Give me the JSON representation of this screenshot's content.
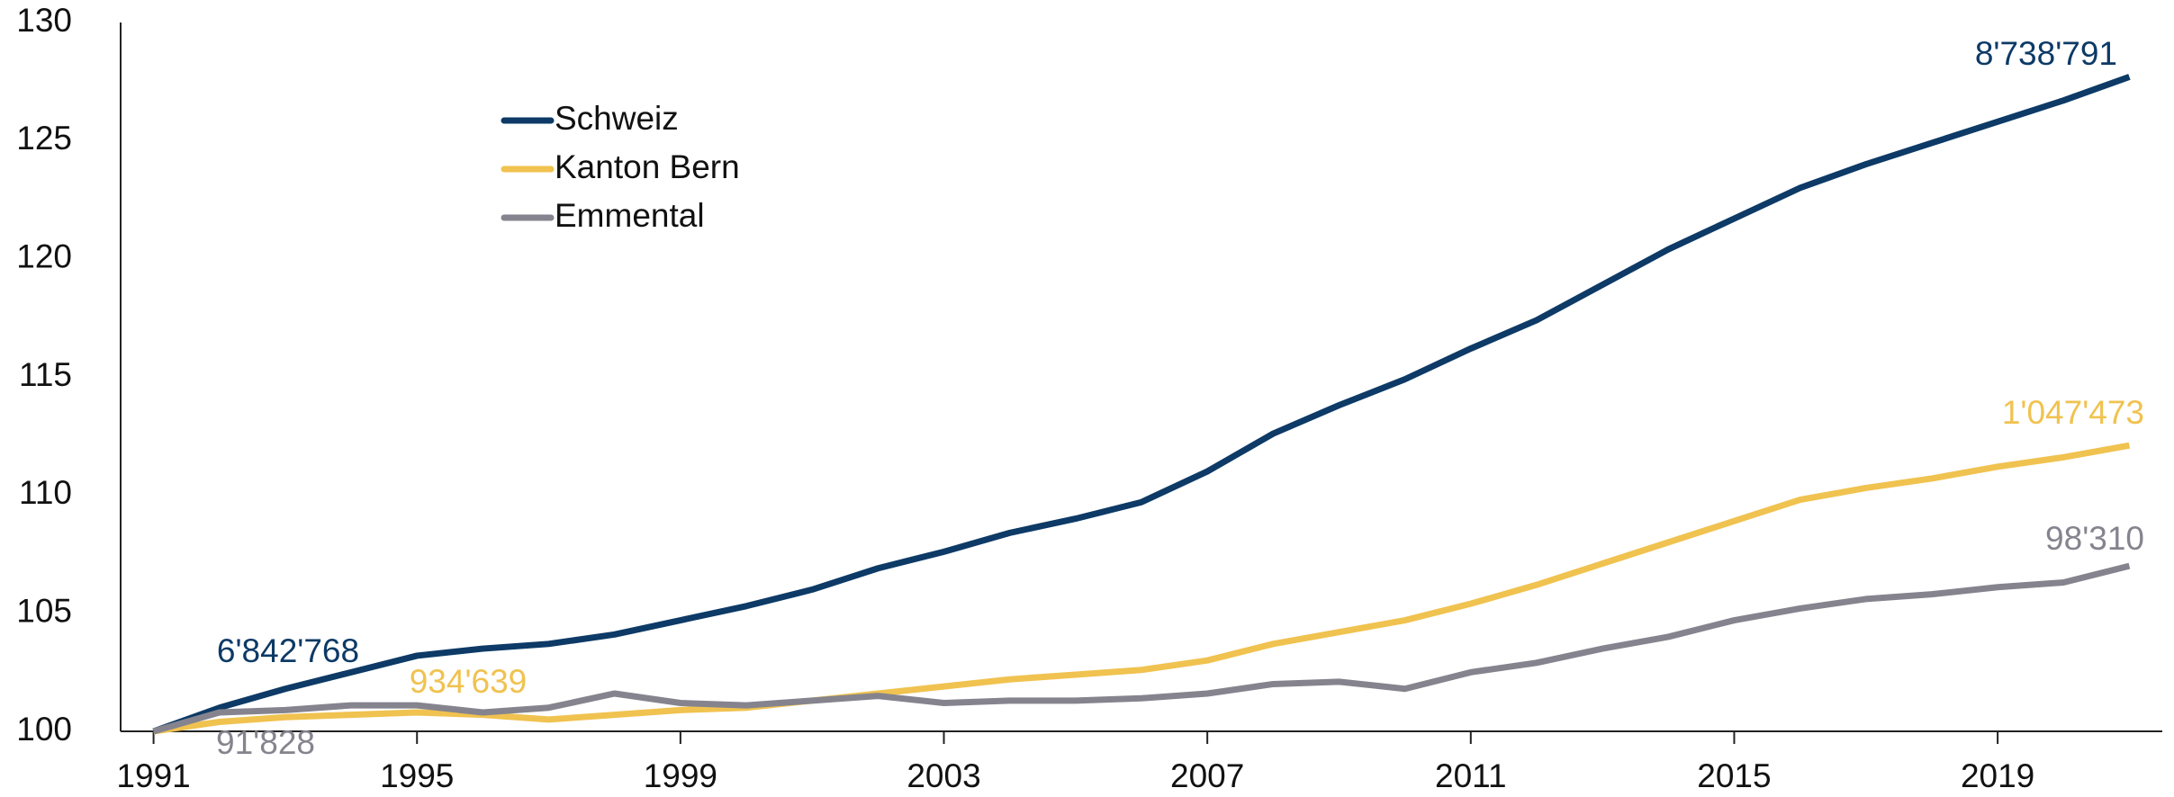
{
  "chart_data": {
    "type": "line",
    "x": [
      1991,
      1992,
      1993,
      1994,
      1995,
      1996,
      1997,
      1998,
      1999,
      2000,
      2001,
      2002,
      2003,
      2004,
      2005,
      2006,
      2007,
      2008,
      2009,
      2010,
      2011,
      2012,
      2013,
      2014,
      2015,
      2016,
      2017,
      2018,
      2019,
      2020,
      2021
    ],
    "series": [
      {
        "name": "Schweiz",
        "color": "#0d3a66",
        "start_label": "6'842'768",
        "end_label": "8'738'791",
        "values": [
          100,
          101.0,
          101.8,
          102.5,
          103.2,
          103.5,
          103.7,
          104.1,
          104.7,
          105.3,
          106.0,
          106.9,
          107.6,
          108.4,
          109.0,
          109.7,
          111.0,
          112.6,
          113.8,
          114.9,
          116.2,
          117.4,
          118.9,
          120.4,
          121.7,
          123.0,
          124.0,
          124.9,
          125.8,
          126.7,
          127.7
        ]
      },
      {
        "name": "Kanton Bern",
        "color": "#f0c24f",
        "start_label": "934'639",
        "end_label": "1'047'473",
        "values": [
          100,
          100.4,
          100.6,
          100.7,
          100.8,
          100.7,
          100.5,
          100.7,
          100.9,
          101.0,
          101.3,
          101.6,
          101.9,
          102.2,
          102.4,
          102.6,
          103.0,
          103.7,
          104.2,
          104.7,
          105.4,
          106.2,
          107.1,
          108.0,
          108.9,
          109.8,
          110.3,
          110.7,
          111.2,
          111.6,
          112.1
        ]
      },
      {
        "name": "Emmental",
        "color": "#85848e",
        "start_label": "91'828",
        "end_label": "98'310",
        "values": [
          100,
          100.8,
          100.9,
          101.1,
          101.1,
          100.8,
          101.0,
          101.6,
          101.2,
          101.1,
          101.3,
          101.5,
          101.2,
          101.3,
          101.3,
          101.4,
          101.6,
          102.0,
          102.1,
          101.8,
          102.5,
          102.9,
          103.5,
          104.0,
          104.7,
          105.2,
          105.6,
          105.8,
          106.1,
          106.3,
          107.0
        ]
      }
    ],
    "xlim": [
      1990.5,
      2021.5
    ],
    "xticks": [
      1991,
      1995,
      1999,
      2003,
      2007,
      2011,
      2015,
      2019
    ],
    "ylim": [
      100,
      130
    ],
    "yticks": [
      100,
      105,
      110,
      115,
      120,
      125,
      130
    ],
    "grid": false,
    "legend": "upper-left"
  }
}
